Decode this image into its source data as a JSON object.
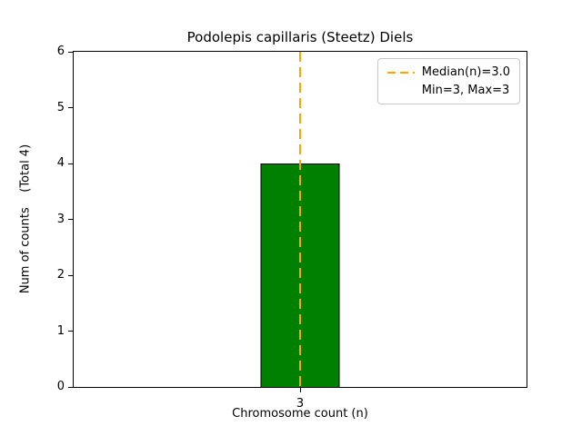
{
  "chart_data": {
    "type": "bar",
    "title": "Podolepis capillaris (Steetz) Diels",
    "xlabel": "Chromosome count (n)",
    "ylabel": "Num of counts    (Total 4)",
    "categories": [
      "3"
    ],
    "values": [
      4
    ],
    "ylim": [
      0,
      6
    ],
    "yticks": [
      0,
      1,
      2,
      3,
      4,
      5,
      6
    ],
    "bar_color": "#008000",
    "bar_edge_color": "#000000",
    "grid": false,
    "legend_position": "upper right",
    "median_line": {
      "x": 3,
      "color": "#FFA500",
      "style": "dashed",
      "label": "Median(n)=3.0"
    },
    "legend": [
      "Median(n)=3.0",
      "Min=3, Max=3"
    ]
  }
}
